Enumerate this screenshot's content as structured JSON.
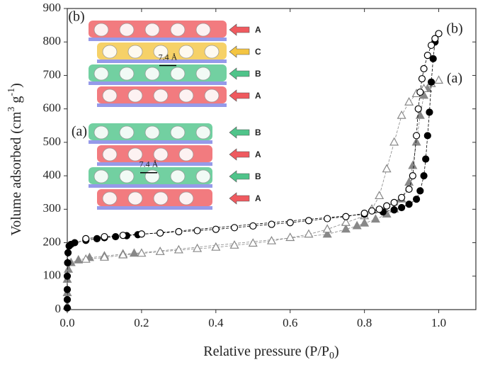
{
  "chart_data": {
    "type": "scatter",
    "xlabel": [
      "Relative pressure (P/P",
      "0",
      ")"
    ],
    "ylabel": [
      "Volume adsorbed (cm",
      "3",
      " g",
      "-1",
      ")"
    ],
    "xlim": [
      0,
      1.1
    ],
    "ylim": [
      0,
      900
    ],
    "xticks": [
      {
        "value": 0,
        "label": "0.0"
      },
      0.2,
      0.4,
      0.6,
      0.8,
      {
        "value": 1,
        "label": "1.0"
      }
    ],
    "yticks": [
      0,
      100,
      200,
      300,
      400,
      500,
      600,
      700,
      800,
      900
    ],
    "annotations": [
      "(b)",
      "(a)"
    ],
    "series": [
      {
        "color": "#888888",
        "marker": "triangle",
        "filled": true,
        "x": [
          0,
          0,
          0,
          0.003,
          0.01,
          0.03,
          0.06,
          0.1,
          0.15,
          0.18,
          0.7,
          0.75,
          0.78,
          0.8,
          0.83,
          0.86,
          0.88,
          0.9,
          0.92,
          0.93,
          0.94,
          0.95,
          0.96,
          0.97
        ],
        "values": [
          10,
          50,
          90,
          120,
          140,
          148,
          155,
          160,
          166,
          168,
          225,
          240,
          250,
          258,
          270,
          285,
          300,
          330,
          380,
          430,
          500,
          580,
          640,
          660
        ]
      },
      {
        "color": "#888888",
        "marker": "triangle",
        "filled": false,
        "x": [
          1,
          0.98,
          0.96,
          0.94,
          0.92,
          0.9,
          0.88,
          0.86,
          0.84,
          0.82,
          0.8,
          0.75,
          0.7,
          0.65,
          0.6,
          0.55,
          0.5,
          0.45,
          0.4,
          0.35,
          0.3,
          0.25,
          0.2,
          0.15,
          0.1,
          0.05
        ],
        "values": [
          685,
          675,
          660,
          645,
          620,
          580,
          500,
          420,
          340,
          300,
          280,
          260,
          240,
          225,
          215,
          205,
          198,
          192,
          186,
          182,
          178,
          173,
          168,
          163,
          156,
          150
        ]
      },
      {
        "color": "#000000",
        "marker": "circle",
        "filled": true,
        "x": [
          0,
          0,
          0,
          0,
          0.001,
          0.002,
          0.005,
          0.01,
          0.02,
          0.05,
          0.08,
          0.1,
          0.13,
          0.16,
          0.19,
          0.8,
          0.85,
          0.88,
          0.9,
          0.92,
          0.94,
          0.95,
          0.96,
          0.965,
          0.97,
          0.975,
          0.98,
          0.985,
          0.99
        ],
        "values": [
          5,
          30,
          60,
          100,
          140,
          170,
          190,
          195,
          200,
          207,
          212,
          215,
          218,
          221,
          224,
          285,
          292,
          298,
          305,
          315,
          330,
          355,
          400,
          450,
          520,
          590,
          680,
          750,
          800
        ]
      },
      {
        "color": "#000000",
        "marker": "circle",
        "filled": false,
        "x": [
          1,
          0.99,
          0.98,
          0.97,
          0.96,
          0.955,
          0.95,
          0.945,
          0.94,
          0.93,
          0.92,
          0.9,
          0.88,
          0.86,
          0.84,
          0.82,
          0.8,
          0.75,
          0.7,
          0.65,
          0.6,
          0.55,
          0.5,
          0.45,
          0.4,
          0.35,
          0.3,
          0.25,
          0.2,
          0.15,
          0.1,
          0.05
        ],
        "values": [
          825,
          810,
          790,
          760,
          720,
          690,
          650,
          600,
          520,
          400,
          360,
          335,
          320,
          310,
          300,
          295,
          288,
          278,
          272,
          266,
          260,
          255,
          250,
          245,
          240,
          236,
          233,
          229,
          226,
          222,
          218,
          212
        ]
      }
    ]
  },
  "insets": [
    {
      "label": "(b)",
      "pore": "7.4 Å",
      "rows": [
        {
          "label": "A",
          "color": "#ef5a5f"
        },
        {
          "label": "C",
          "color": "#f4c542"
        },
        {
          "label": "B",
          "color": "#4fc48a"
        },
        {
          "label": "A",
          "color": "#ef5a5f"
        }
      ]
    },
    {
      "label": "(a)",
      "pore": "7.4 Å",
      "rows": [
        {
          "label": "B",
          "color": "#4fc48a"
        },
        {
          "label": "A",
          "color": "#ef5a5f"
        },
        {
          "label": "B",
          "color": "#4fc48a"
        },
        {
          "label": "A",
          "color": "#ef5a5f"
        }
      ]
    }
  ]
}
